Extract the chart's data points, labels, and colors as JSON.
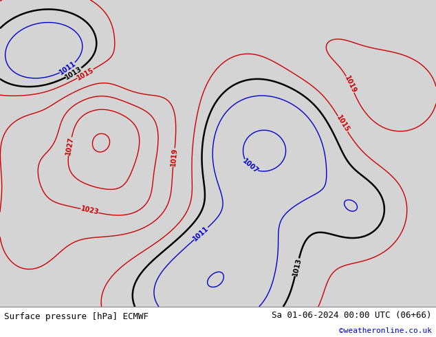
{
  "title_left": "Surface pressure [hPa] ECMWF",
  "title_right": "Sa 01-06-2024 00:00 UTC (06+66)",
  "credit": "©weatheronline.co.uk",
  "bg_ocean": "#d4d4d4",
  "bg_land": "#c8e8b0",
  "bg_lakes": "#d4d4d4",
  "contour_color_low": "#0000cc",
  "contour_color_high": "#cc0000",
  "contour_color_1013": "#000000",
  "title_fontsize": 9,
  "credit_color": "#0000cc",
  "figsize": [
    6.34,
    4.9
  ],
  "dpi": 100,
  "extent": [
    -30,
    50,
    27,
    72
  ],
  "pressure_centers": [
    {
      "lon": -12,
      "lat": 52,
      "amp": 16,
      "slon": 10,
      "slat": 8,
      "sign": 1
    },
    {
      "lon": -20,
      "lat": 52,
      "amp": 4,
      "slon": 3,
      "slat": 3,
      "sign": -1
    },
    {
      "lon": -20,
      "lat": 63,
      "amp": 12,
      "slon": 8,
      "slat": 5,
      "sign": -1
    },
    {
      "lon": -5,
      "lat": 60,
      "amp": 5,
      "slon": 4,
      "slat": 3,
      "sign": -1
    },
    {
      "lon": 18,
      "lat": 50,
      "amp": 10,
      "slon": 10,
      "slat": 7,
      "sign": -1
    },
    {
      "lon": 13,
      "lat": 36,
      "amp": 4,
      "slon": 8,
      "slat": 4,
      "sign": -1
    },
    {
      "lon": 36,
      "lat": 41,
      "amp": 4,
      "slon": 5,
      "slat": 4,
      "sign": -1
    },
    {
      "lon": 42,
      "lat": 58,
      "amp": 6,
      "slon": 7,
      "slat": 5,
      "sign": 1
    },
    {
      "lon": -25,
      "lat": 37,
      "amp": 4,
      "slon": 5,
      "slat": 5,
      "sign": 1
    },
    {
      "lon": 8,
      "lat": 29,
      "amp": 8,
      "slon": 10,
      "slat": 5,
      "sign": -1
    },
    {
      "lon": -5,
      "lat": 42,
      "amp": 3,
      "slon": 5,
      "slat": 3,
      "sign": 1
    },
    {
      "lon": 30,
      "lat": 65,
      "amp": 3,
      "slon": 6,
      "slat": 4,
      "sign": 1
    }
  ],
  "base_pressure": 1016.0
}
